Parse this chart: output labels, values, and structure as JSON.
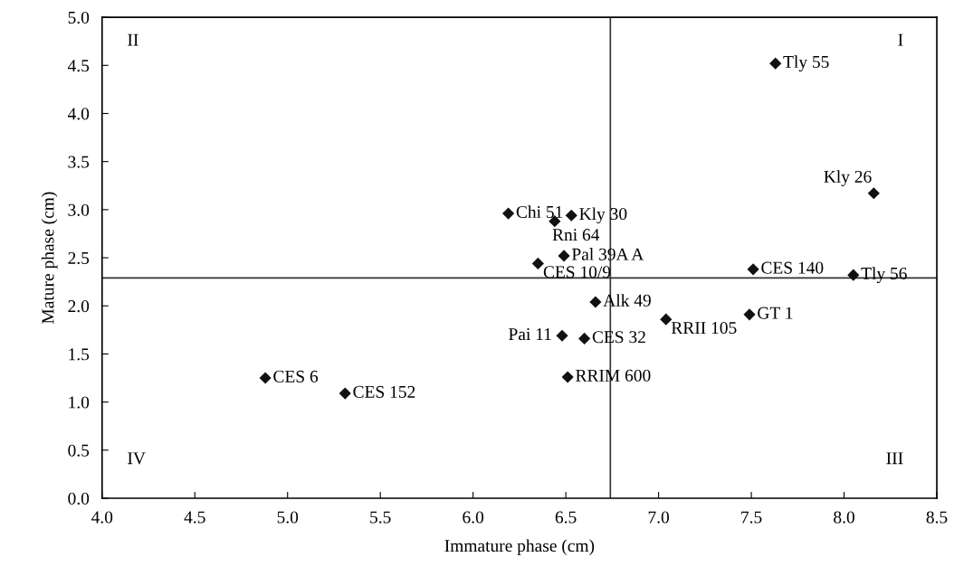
{
  "chart_data": {
    "type": "scatter",
    "xlabel": "Immature phase (cm)",
    "ylabel": "Mature phase (cm)",
    "xlim": [
      4.0,
      8.5
    ],
    "xticks": [
      {
        "value": 4.0,
        "label": "4.0"
      },
      4.5,
      {
        "value": 5.0,
        "label": "5.0"
      },
      5.5,
      {
        "value": 6.0,
        "label": "6.0"
      },
      6.5,
      {
        "value": 7.0,
        "label": "7.0"
      },
      7.5,
      {
        "value": 8.0,
        "label": "8.0"
      },
      8.5
    ],
    "ylim": [
      0.0,
      5.0
    ],
    "yticks": [
      {
        "value": 0.0,
        "label": "0.0"
      },
      0.5,
      {
        "value": 1.0,
        "label": "1.0"
      },
      1.5,
      {
        "value": 2.0,
        "label": "2.0"
      },
      2.5,
      {
        "value": 3.0,
        "label": "3.0"
      },
      3.5,
      {
        "value": 4.0,
        "label": "4.0"
      },
      4.5,
      {
        "value": 5.0,
        "label": "5.0"
      }
    ],
    "marker": "diamond",
    "grid": false,
    "legend": false,
    "series": [
      {
        "color": "#111111",
        "x": [
          7.63,
          8.16,
          6.19,
          6.53,
          6.44,
          6.49,
          6.35,
          7.51,
          8.05,
          6.66,
          7.49,
          7.04,
          6.48,
          6.6,
          6.51,
          4.88,
          5.31
        ],
        "values": [
          4.52,
          3.17,
          2.96,
          2.94,
          2.88,
          2.52,
          2.44,
          2.38,
          2.32,
          2.04,
          1.91,
          1.86,
          1.69,
          1.66,
          1.26,
          1.25,
          1.09
        ]
      }
    ],
    "ref_lines": [
      {
        "axis": "x",
        "value": 6.74,
        "color": "#333333"
      },
      {
        "axis": "y",
        "value": 2.29,
        "color": "#333333"
      }
    ],
    "annotations": [
      {
        "text": "Tly 55",
        "x": 7.63,
        "y": 4.52
      },
      {
        "text": "Kly 26",
        "x": 8.16,
        "y": 3.17
      },
      {
        "text": "Chi 51",
        "x": 6.19,
        "y": 2.96
      },
      {
        "text": "Kly 30",
        "x": 6.53,
        "y": 2.94
      },
      {
        "text": "Rni 64",
        "x": 6.44,
        "y": 2.88
      },
      {
        "text": "Pal 39A A",
        "x": 6.49,
        "y": 2.52
      },
      {
        "text": "CES 10/9",
        "x": 6.35,
        "y": 2.44
      },
      {
        "text": "CES 140",
        "x": 7.51,
        "y": 2.38
      },
      {
        "text": "Tly 56",
        "x": 8.05,
        "y": 2.32
      },
      {
        "text": "Alk 49",
        "x": 6.66,
        "y": 2.04
      },
      {
        "text": "GT 1",
        "x": 7.49,
        "y": 1.91
      },
      {
        "text": "RRII 105",
        "x": 7.04,
        "y": 1.86
      },
      {
        "text": "Pai 11",
        "x": 6.48,
        "y": 1.69
      },
      {
        "text": "CES 32",
        "x": 6.6,
        "y": 1.66
      },
      {
        "text": "RRIM 600",
        "x": 6.51,
        "y": 1.26
      },
      {
        "text": "CES 6",
        "x": 4.88,
        "y": 1.25
      },
      {
        "text": "CES 152",
        "x": 5.31,
        "y": 1.09
      },
      "I",
      "II",
      "III",
      "IV"
    ]
  }
}
